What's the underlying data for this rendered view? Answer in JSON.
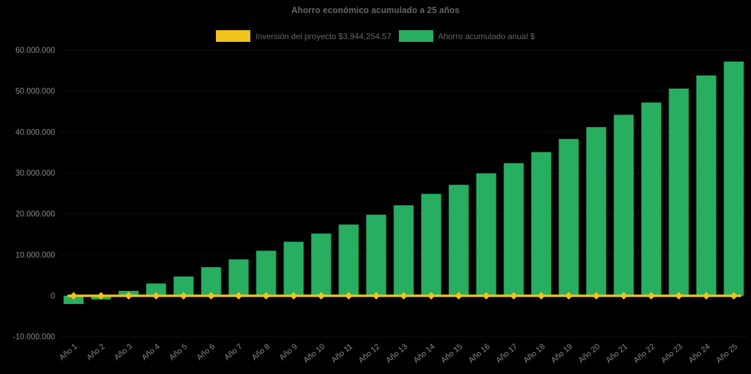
{
  "page": {
    "background": "#000000"
  },
  "chart_data": {
    "type": "bar",
    "title": "Ahorro económico acumulado a 25 años",
    "title_color": "#666666",
    "legend_position": "top",
    "legend_text_color": "#666666",
    "axis_text_color": "#8a8a8a",
    "background_color": "#000000",
    "grid": "hidden",
    "categories": [
      "Año 1",
      "Año 2",
      "Año 3",
      "Año 4",
      "Año 5",
      "Año 6",
      "Año 7",
      "Año 8",
      "Año 9",
      "Año 10",
      "Año 11",
      "Año 12",
      "Año 13",
      "Año 14",
      "Año 15",
      "Año 16",
      "Año 17",
      "Año 18",
      "Año 19",
      "Año 20",
      "Año 21",
      "Año 22",
      "Año 23",
      "Año 24",
      "Año 25"
    ],
    "series": [
      {
        "name": "Inversión del proyecto $3,944,254.57",
        "type": "line",
        "color": "#F0C41A",
        "marker": "diamond",
        "constant_value": 3944254.57,
        "plotted_at_y": 0
      },
      {
        "name": "Ahorro acumulado anual $",
        "type": "bar",
        "color": "#27AE60",
        "values": [
          -2000000,
          -900000,
          1200000,
          3000000,
          4700000,
          7000000,
          8900000,
          11000000,
          13200000,
          15200000,
          17400000,
          19800000,
          22100000,
          24900000,
          27100000,
          29900000,
          32400000,
          35100000,
          38300000,
          41200000,
          44200000,
          47200000,
          50600000,
          53800000,
          57200000
        ]
      }
    ],
    "ylim": [
      -10000000,
      60000000
    ],
    "ytick_step": 10000000,
    "ytick_labels": [
      "-10.000.000",
      "0",
      "10.000.000",
      "20.000.000",
      "30.000.000",
      "40.000.000",
      "50.000.000",
      "60.000.000"
    ],
    "xlabel": "",
    "ylabel": ""
  }
}
